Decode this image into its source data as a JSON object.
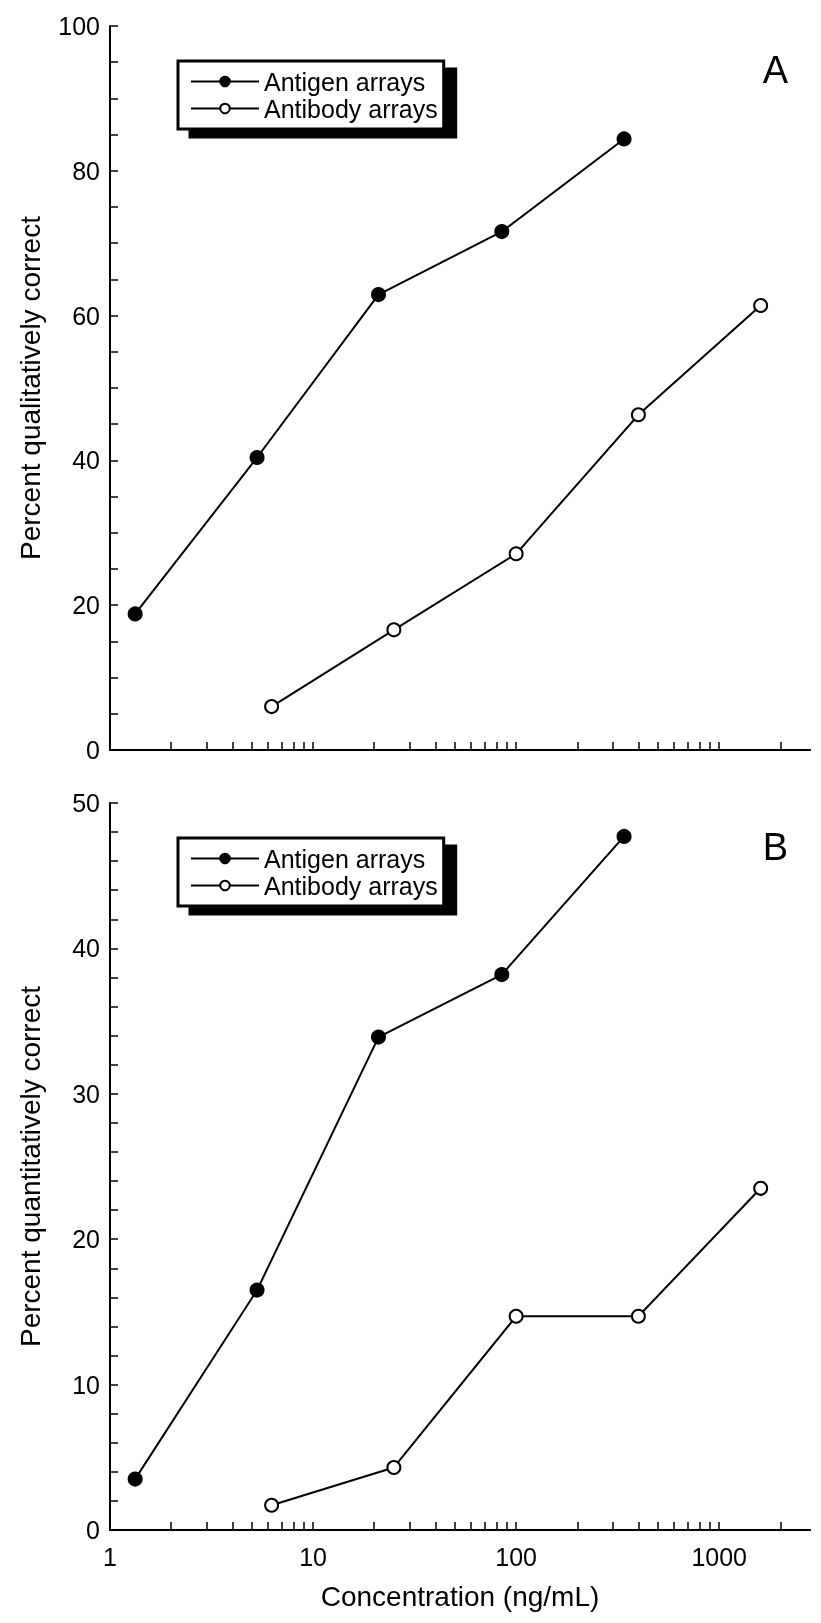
{
  "chart_data": [
    {
      "type": "line",
      "ylabel": "Percent qualitatively correct",
      "annotations": [
        "A"
      ],
      "legend": "top left",
      "marker": "circle",
      "grid": false,
      "log": "x",
      "tick_labels": "y",
      "xlim": [
        1,
        2800
      ],
      "xticks": [
        1,
        {
          "value": 2,
          "label": null
        },
        {
          "value": 3,
          "label": null
        },
        {
          "value": 4,
          "label": null
        },
        {
          "value": 5,
          "label": null
        },
        {
          "value": 6,
          "label": null
        },
        {
          "value": 7,
          "label": null
        },
        {
          "value": 8,
          "label": null
        },
        {
          "value": 9,
          "label": null
        },
        10,
        {
          "value": 20,
          "label": null
        },
        {
          "value": 30,
          "label": null
        },
        {
          "value": 40,
          "label": null
        },
        {
          "value": 50,
          "label": null
        },
        {
          "value": 60,
          "label": null
        },
        {
          "value": 70,
          "label": null
        },
        {
          "value": 80,
          "label": null
        },
        {
          "value": 90,
          "label": null
        },
        100,
        {
          "value": 200,
          "label": null
        },
        {
          "value": 300,
          "label": null
        },
        {
          "value": 400,
          "label": null
        },
        {
          "value": 500,
          "label": null
        },
        {
          "value": 600,
          "label": null
        },
        {
          "value": 700,
          "label": null
        },
        {
          "value": 800,
          "label": null
        },
        {
          "value": 900,
          "label": null
        },
        1000,
        {
          "value": 2000,
          "label": null
        }
      ],
      "ylim": [
        0,
        100
      ],
      "yticks": [
        0,
        {
          "value": 5,
          "label": null
        },
        {
          "value": 10,
          "label": null
        },
        {
          "value": 15,
          "label": null
        },
        20,
        {
          "value": 25,
          "label": null
        },
        {
          "value": 30,
          "label": null
        },
        {
          "value": 35,
          "label": null
        },
        40,
        {
          "value": 45,
          "label": null
        },
        {
          "value": 50,
          "label": null
        },
        {
          "value": 55,
          "label": null
        },
        60,
        {
          "value": 65,
          "label": null
        },
        {
          "value": 70,
          "label": null
        },
        {
          "value": 75,
          "label": null
        },
        80,
        {
          "value": 85,
          "label": null
        },
        {
          "value": 90,
          "label": null
        },
        {
          "value": 95,
          "label": null
        },
        100
      ],
      "series": [
        {
          "name": "Antigen arrays",
          "color": "#000000",
          "x": [
            1.33,
            5.3,
            21,
            85,
            340
          ],
          "values": [
            18.8,
            40.4,
            62.9,
            71.6,
            84.4
          ]
        },
        {
          "name": "Antibody arrays",
          "color": "#000000",
          "x": [
            6.25,
            25,
            100,
            400,
            1600
          ],
          "values": [
            6.0,
            16.6,
            27.1,
            46.3,
            61.4
          ]
        }
      ]
    },
    {
      "type": "line",
      "ylabel": "Percent quantitatively correct",
      "xlabel": "Concentration (ng/mL)",
      "annotations": [
        "B"
      ],
      "legend": "top left",
      "marker": "circle",
      "grid": false,
      "log": "x",
      "xlim": [
        1,
        2800
      ],
      "xticks": [
        1,
        {
          "value": 2,
          "label": null
        },
        {
          "value": 3,
          "label": null
        },
        {
          "value": 4,
          "label": null
        },
        {
          "value": 5,
          "label": null
        },
        {
          "value": 6,
          "label": null
        },
        {
          "value": 7,
          "label": null
        },
        {
          "value": 8,
          "label": null
        },
        {
          "value": 9,
          "label": null
        },
        10,
        {
          "value": 20,
          "label": null
        },
        {
          "value": 30,
          "label": null
        },
        {
          "value": 40,
          "label": null
        },
        {
          "value": 50,
          "label": null
        },
        {
          "value": 60,
          "label": null
        },
        {
          "value": 70,
          "label": null
        },
        {
          "value": 80,
          "label": null
        },
        {
          "value": 90,
          "label": null
        },
        100,
        {
          "value": 200,
          "label": null
        },
        {
          "value": 300,
          "label": null
        },
        {
          "value": 400,
          "label": null
        },
        {
          "value": 500,
          "label": null
        },
        {
          "value": 600,
          "label": null
        },
        {
          "value": 700,
          "label": null
        },
        {
          "value": 800,
          "label": null
        },
        {
          "value": 900,
          "label": null
        },
        1000,
        {
          "value": 2000,
          "label": null
        }
      ],
      "ylim": [
        0,
        50
      ],
      "yticks": [
        0,
        {
          "value": 2,
          "label": null
        },
        {
          "value": 4,
          "label": null
        },
        {
          "value": 6,
          "label": null
        },
        {
          "value": 8,
          "label": null
        },
        10,
        {
          "value": 12,
          "label": null
        },
        {
          "value": 14,
          "label": null
        },
        {
          "value": 16,
          "label": null
        },
        {
          "value": 18,
          "label": null
        },
        20,
        {
          "value": 22,
          "label": null
        },
        {
          "value": 24,
          "label": null
        },
        {
          "value": 26,
          "label": null
        },
        {
          "value": 28,
          "label": null
        },
        30,
        {
          "value": 32,
          "label": null
        },
        {
          "value": 34,
          "label": null
        },
        {
          "value": 36,
          "label": null
        },
        {
          "value": 38,
          "label": null
        },
        40,
        {
          "value": 42,
          "label": null
        },
        {
          "value": 44,
          "label": null
        },
        {
          "value": 46,
          "label": null
        },
        {
          "value": 48,
          "label": null
        },
        50
      ],
      "series": [
        {
          "name": "Antigen arrays",
          "color": "#000000",
          "x": [
            1.33,
            5.3,
            21,
            85,
            340
          ],
          "values": [
            3.5,
            16.5,
            33.9,
            38.2,
            47.7
          ]
        },
        {
          "name": "Antibody arrays",
          "color": "#000000",
          "x": [
            6.25,
            25,
            100,
            400,
            1600
          ],
          "values": [
            1.7,
            4.3,
            14.7,
            14.7,
            23.5
          ]
        }
      ]
    }
  ]
}
